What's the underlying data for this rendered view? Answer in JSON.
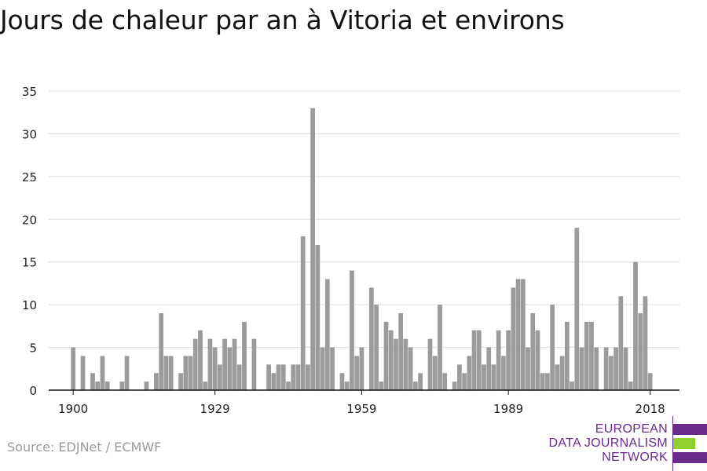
{
  "title": "Jours de chaleur par an à Vitoria et environs",
  "source": "Source: EDJNet / ECMWF",
  "logo": {
    "lines": [
      "EUROPEAN",
      "DATA JOURNALISM",
      "NETWORK"
    ],
    "colors": {
      "purple": "#6b2b8c",
      "green": "#8fd12e"
    }
  },
  "colors": {
    "bar": "#9b9b9b",
    "grid": "#dcdcdc",
    "axis": "#111111",
    "text": "#222222"
  },
  "chart_data": {
    "type": "bar",
    "title": "Jours de chaleur par an à Vitoria et environs",
    "xlabel": "",
    "ylabel": "",
    "ylim": [
      0,
      35
    ],
    "yticks": [
      0,
      5,
      10,
      15,
      20,
      25,
      30,
      35
    ],
    "xticks": [
      1900,
      1929,
      1959,
      1989,
      2018
    ],
    "xlim": [
      1895,
      2024
    ],
    "grid": true,
    "x": [
      1900,
      1901,
      1902,
      1903,
      1904,
      1905,
      1906,
      1907,
      1908,
      1909,
      1910,
      1911,
      1912,
      1913,
      1914,
      1915,
      1916,
      1917,
      1918,
      1919,
      1920,
      1921,
      1922,
      1923,
      1924,
      1925,
      1926,
      1927,
      1928,
      1929,
      1930,
      1931,
      1932,
      1933,
      1934,
      1935,
      1936,
      1937,
      1938,
      1939,
      1940,
      1941,
      1942,
      1943,
      1944,
      1945,
      1946,
      1947,
      1948,
      1949,
      1950,
      1951,
      1952,
      1953,
      1954,
      1955,
      1956,
      1957,
      1958,
      1959,
      1960,
      1961,
      1962,
      1963,
      1964,
      1965,
      1966,
      1967,
      1968,
      1969,
      1970,
      1971,
      1972,
      1973,
      1974,
      1975,
      1976,
      1977,
      1978,
      1979,
      1980,
      1981,
      1982,
      1983,
      1984,
      1985,
      1986,
      1987,
      1988,
      1989,
      1990,
      1991,
      1992,
      1993,
      1994,
      1995,
      1996,
      1997,
      1998,
      1999,
      2000,
      2001,
      2002,
      2003,
      2004,
      2005,
      2006,
      2007,
      2008,
      2009,
      2010,
      2011,
      2012,
      2013,
      2014,
      2015,
      2016,
      2017,
      2018
    ],
    "values": [
      5,
      0,
      4,
      0,
      2,
      1,
      4,
      1,
      0,
      0,
      1,
      4,
      0,
      0,
      0,
      1,
      0,
      2,
      9,
      4,
      4,
      0,
      2,
      4,
      4,
      6,
      7,
      1,
      6,
      5,
      3,
      6,
      5,
      6,
      3,
      8,
      0,
      6,
      0,
      0,
      3,
      2,
      3,
      3,
      1,
      3,
      3,
      18,
      3,
      33,
      17,
      5,
      13,
      5,
      0,
      2,
      1,
      14,
      4,
      5,
      0,
      12,
      10,
      1,
      8,
      7,
      6,
      9,
      6,
      5,
      1,
      2,
      0,
      6,
      4,
      10,
      2,
      0,
      1,
      3,
      2,
      4,
      7,
      7,
      3,
      5,
      3,
      7,
      4,
      7,
      12,
      13,
      13,
      5,
      9,
      7,
      2,
      2,
      10,
      3,
      4,
      8,
      1,
      19,
      5,
      8,
      8,
      5,
      0,
      5,
      4,
      5,
      11,
      5,
      1,
      15,
      9,
      11,
      2
    ]
  }
}
